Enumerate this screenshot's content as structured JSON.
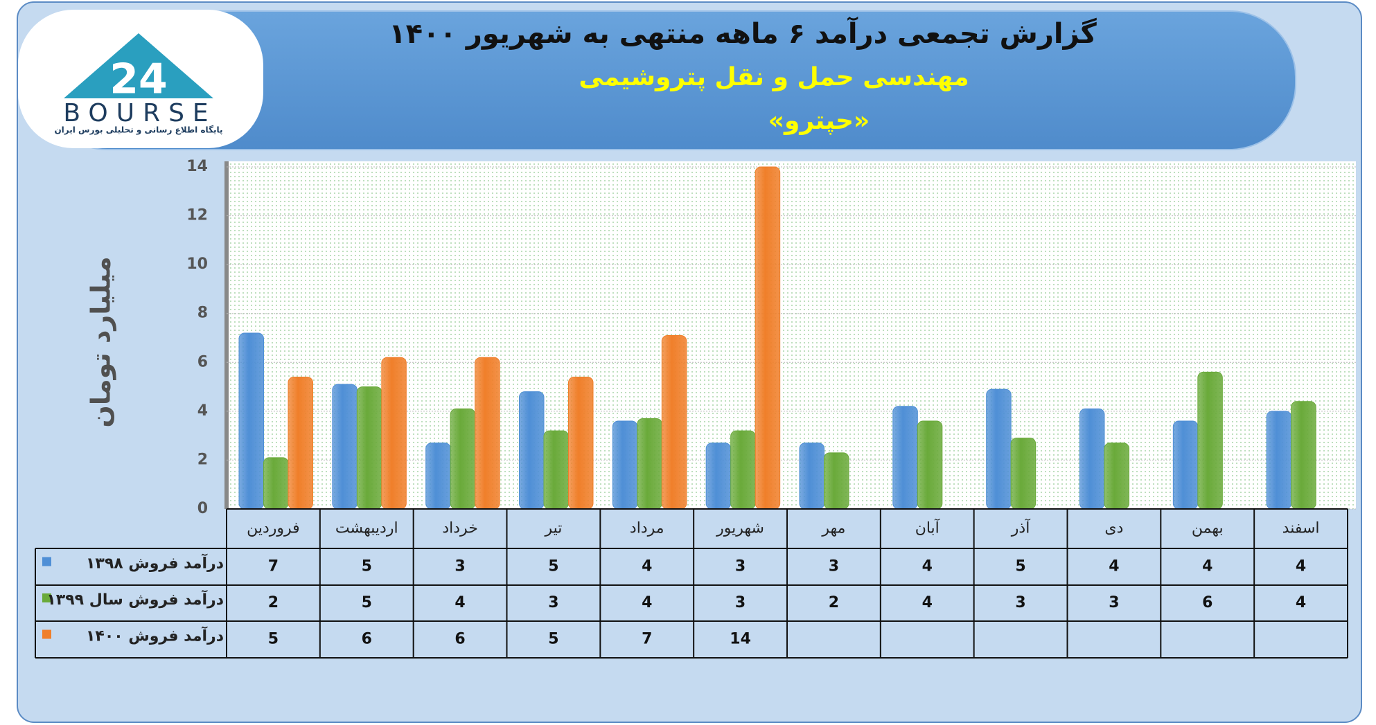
{
  "logo": {
    "text": "BOURSE",
    "tagline": "پایگاه اطلاع رسانی و تحلیلی بورس ایران"
  },
  "chart_data": {
    "type": "bar",
    "title": "گزارش تجمعی درآمد ۶ ماهه منتهی به شهریور ۱۴۰۰",
    "subtitle": "مهندسی حمل و نقل پتروشیمی",
    "company": "«حپترو»",
    "y_label": "میلیارد تومان",
    "categories": [
      "فروردین",
      "اردیبهشت",
      "خرداد",
      "تیر",
      "مرداد",
      "شهریور",
      "مهر",
      "آبان",
      "آذر",
      "دی",
      "بهمن",
      "اسفند"
    ],
    "series": [
      {
        "name": "درآمد فروش ۱۳۹۸",
        "color": "#4f8fd6",
        "values": [
          7.2,
          5.1,
          2.7,
          4.8,
          3.6,
          2.7,
          2.7,
          4.2,
          4.9,
          4.1,
          3.6,
          4.0
        ],
        "value_labels": [
          "7",
          "5",
          "3",
          "5",
          "4",
          "3",
          "3",
          "4",
          "5",
          "4",
          "4",
          "4"
        ]
      },
      {
        "name": "درآمد فروش سال ۱۳۹۹",
        "color": "#6aaa3a",
        "values": [
          2.1,
          5.0,
          4.1,
          3.2,
          3.7,
          3.2,
          2.3,
          3.6,
          2.9,
          2.7,
          5.6,
          4.4
        ],
        "value_labels": [
          "2",
          "5",
          "4",
          "3",
          "4",
          "3",
          "2",
          "4",
          "3",
          "3",
          "6",
          "4"
        ]
      },
      {
        "name": "درآمد فروش ۱۴۰۰",
        "color": "#f07f2a",
        "values": [
          5.4,
          6.2,
          6.2,
          5.4,
          7.1,
          14.0,
          null,
          null,
          null,
          null,
          null,
          null
        ],
        "value_labels": [
          "5",
          "6",
          "6",
          "5",
          "7",
          "14",
          null,
          null,
          null,
          null,
          null,
          null
        ]
      }
    ],
    "ylim": [
      0,
      14
    ],
    "yticks": [
      0,
      2,
      4,
      6,
      8,
      10,
      12,
      14
    ],
    "grid": true
  }
}
